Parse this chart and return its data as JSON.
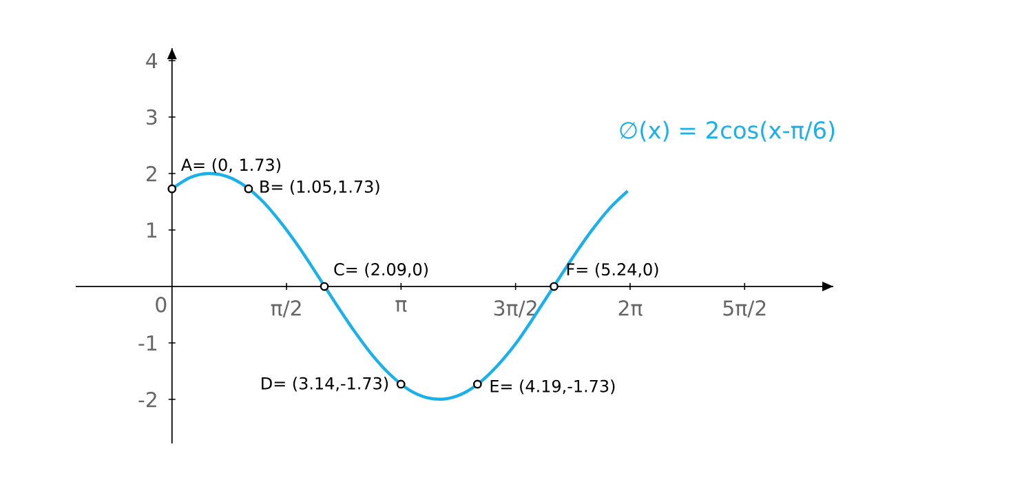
{
  "chart_data": {
    "type": "line",
    "xlim": [
      -1.32,
      9.07
    ],
    "ylim": [
      -2.78,
      4.22
    ],
    "xticks": [
      {
        "value": 0,
        "label": "0"
      },
      {
        "value": 1.5708,
        "label": "π/2"
      },
      {
        "value": 3.1416,
        "label": "π"
      },
      {
        "value": 4.7124,
        "label": "3π/2"
      },
      {
        "value": 6.2832,
        "label": "2π"
      },
      {
        "value": 7.854,
        "label": "5π/2"
      }
    ],
    "yticks": [
      -2,
      -1,
      1,
      2,
      3,
      4
    ],
    "series": [
      {
        "color": "#1ab0ea",
        "x": [
          0,
          0.25,
          0.5,
          0.75,
          1.0,
          1.25,
          1.5,
          1.75,
          2.0,
          2.25,
          2.5,
          2.75,
          3.0,
          3.25,
          3.5,
          3.75,
          4.0,
          4.25,
          4.5,
          4.75,
          5.0,
          5.25,
          5.5,
          5.75,
          6.0,
          6.25
        ],
        "values": [
          1.73,
          1.93,
          2.0,
          1.95,
          1.78,
          1.5,
          1.12,
          0.68,
          0.19,
          -0.31,
          -0.79,
          -1.22,
          -1.57,
          -1.83,
          -1.97,
          -1.99,
          -1.89,
          -1.67,
          -1.35,
          -0.95,
          -0.47,
          0.03,
          0.52,
          0.98,
          1.38,
          1.69
        ]
      },
      {
        "type": "scatter",
        "color": "#000000",
        "marker": "circle",
        "x": [
          0,
          1.05,
          2.09,
          3.14,
          4.19,
          5.24
        ],
        "values": [
          1.73,
          1.73,
          0,
          -1.73,
          -1.73,
          0
        ]
      }
    ],
    "annotations": [
      {
        "text": "A= (0, 1.73)",
        "x": 0,
        "y": 1.73
      },
      {
        "text": "B= (1.05,1.73)",
        "x": 1.05,
        "y": 1.73
      },
      {
        "text": "C= (2.09,0)",
        "x": 2.09,
        "y": 0
      },
      {
        "text": "D= (3.14,-1.73)",
        "x": 3.14,
        "y": -1.73
      },
      {
        "text": "E= (4.19,-1.73)",
        "x": 4.19,
        "y": -1.73
      },
      {
        "text": "F= (5.24,0)",
        "x": 5.24,
        "y": 0
      },
      "∅(x) = 2cos(x-π/6)"
    ]
  }
}
